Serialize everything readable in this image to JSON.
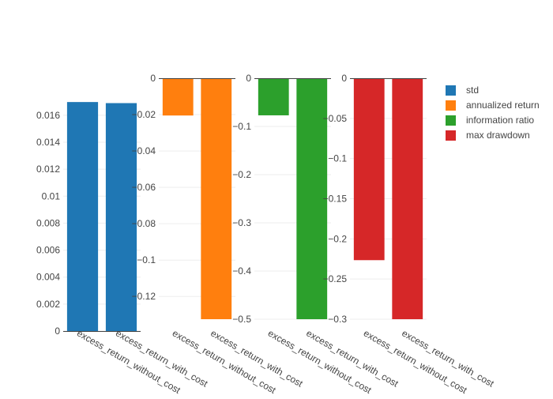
{
  "chart_data": [
    {
      "type": "bar",
      "categories": [
        "excess_return_without_cost",
        "excess_return_with_cost"
      ],
      "series": [
        {
          "name": "std",
          "values": [
            0.01698,
            0.0169
          ],
          "color": "#1f77b4"
        }
      ],
      "yticks": [
        0,
        0.002,
        0.004,
        0.006,
        0.008,
        0.01,
        0.012,
        0.014,
        0.016
      ],
      "ytick_labels": [
        "0",
        "0.002",
        "0.004",
        "0.006",
        "0.008",
        "0.01",
        "0.012",
        "0.014",
        "0.016"
      ],
      "ylim": [
        0,
        0.01775
      ],
      "grid": true
    },
    {
      "type": "bar",
      "categories": [
        "excess_return_without_cost",
        "excess_return_with_cost"
      ],
      "series": [
        {
          "name": "annualized return",
          "values": [
            -0.0205,
            -0.1325
          ],
          "color": "#ff7f0e"
        }
      ],
      "yticks": [
        0,
        -0.02,
        -0.04,
        -0.06,
        -0.08,
        -0.1,
        -0.12
      ],
      "ytick_labels": [
        "0",
        "−0.02",
        "−0.04",
        "−0.06",
        "−0.08",
        "−0.1",
        "−0.12"
      ],
      "ylim": [
        -0.1325,
        0
      ],
      "grid": true
    },
    {
      "type": "bar",
      "categories": [
        "excess_return_without_cost",
        "excess_return_with_cost"
      ],
      "series": [
        {
          "name": "information ratio",
          "values": [
            -0.077,
            -0.5
          ],
          "color": "#2ca02c"
        }
      ],
      "yticks": [
        0,
        -0.1,
        -0.2,
        -0.3,
        -0.4,
        -0.5
      ],
      "ytick_labels": [
        "0",
        "−0.1",
        "−0.2",
        "−0.3",
        "−0.4",
        "−0.5"
      ],
      "ylim": [
        -0.5,
        0
      ],
      "grid": true
    },
    {
      "type": "bar",
      "categories": [
        "excess_return_without_cost",
        "excess_return_with_cost"
      ],
      "series": [
        {
          "name": "max drawdown",
          "values": [
            -0.2265,
            -0.3
          ],
          "color": "#d62728"
        }
      ],
      "yticks": [
        0,
        -0.05,
        -0.1,
        -0.15,
        -0.2,
        -0.25,
        -0.3
      ],
      "ytick_labels": [
        "0",
        "−0.05",
        "−0.1",
        "−0.15",
        "−0.2",
        "−0.25",
        "−0.3"
      ],
      "ylim": [
        -0.3,
        0
      ],
      "grid": true
    }
  ],
  "legend": {
    "placement": "right",
    "items": [
      {
        "label": "std",
        "color": "#1f77b4"
      },
      {
        "label": "annualized return",
        "color": "#ff7f0e"
      },
      {
        "label": "information ratio",
        "color": "#2ca02c"
      },
      {
        "label": "max drawdown",
        "color": "#d62728"
      }
    ]
  }
}
